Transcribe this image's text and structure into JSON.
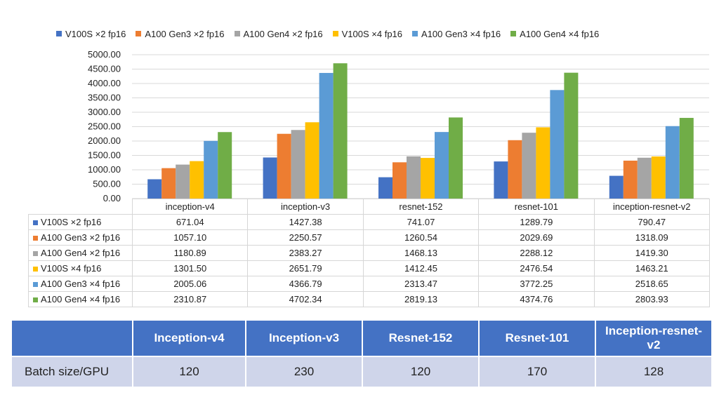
{
  "chart_data": {
    "type": "bar",
    "categories": [
      "inception-v4",
      "inception-v3",
      "resnet-152",
      "resnet-101",
      "inception-resnet-v2"
    ],
    "series": [
      {
        "name": "V100S ×2  fp16",
        "color": "#4472c4",
        "values": [
          671.04,
          1427.38,
          741.07,
          1289.79,
          790.47
        ]
      },
      {
        "name": "A100 Gen3 ×2 fp16",
        "color": "#ed7d31",
        "values": [
          1057.1,
          2250.57,
          1260.54,
          2029.69,
          1318.09
        ]
      },
      {
        "name": "A100 Gen4 ×2 fp16",
        "color": "#a5a5a5",
        "values": [
          1180.89,
          2383.27,
          1468.13,
          2288.12,
          1419.3
        ]
      },
      {
        "name": "V100S ×4 fp16",
        "color": "#ffc000",
        "values": [
          1301.5,
          2651.79,
          1412.45,
          2476.54,
          1463.21
        ]
      },
      {
        "name": "A100 Gen3 ×4 fp16",
        "color": "#5b9bd5",
        "values": [
          2005.06,
          4366.79,
          2313.47,
          3772.25,
          2518.65
        ]
      },
      {
        "name": "A100 Gen4 ×4 fp16",
        "color": "#70ad47",
        "values": [
          2310.87,
          4702.34,
          2819.13,
          4374.76,
          2803.93
        ]
      }
    ],
    "ylim": [
      0,
      5000
    ],
    "yticks": [
      "0.00",
      "500.00",
      "1000.00",
      "1500.00",
      "2000.00",
      "2500.00",
      "3000.00",
      "3500.00",
      "4000.00",
      "4500.00",
      "5000.00"
    ],
    "grid": true,
    "legend": "top",
    "table_values": [
      [
        "671.04",
        "1427.38",
        "741.07",
        "1289.79",
        "790.47"
      ],
      [
        "1057.10",
        "2250.57",
        "1260.54",
        "2029.69",
        "1318.09"
      ],
      [
        "1180.89",
        "2383.27",
        "1468.13",
        "2288.12",
        "1419.30"
      ],
      [
        "1301.50",
        "2651.79",
        "1412.45",
        "2476.54",
        "1463.21"
      ],
      [
        "2005.06",
        "4366.79",
        "2313.47",
        "3772.25",
        "2518.65"
      ],
      [
        "2310.87",
        "4702.34",
        "2819.13",
        "4374.76",
        "2803.93"
      ]
    ]
  },
  "batch_table": {
    "headers": [
      "Inception-v4",
      "Inception-v3",
      "Resnet-152",
      "Resnet-101",
      "Inception-resnet-v2"
    ],
    "row_label": "Batch size/GPU",
    "values": [
      "120",
      "230",
      "120",
      "170",
      "128"
    ]
  }
}
